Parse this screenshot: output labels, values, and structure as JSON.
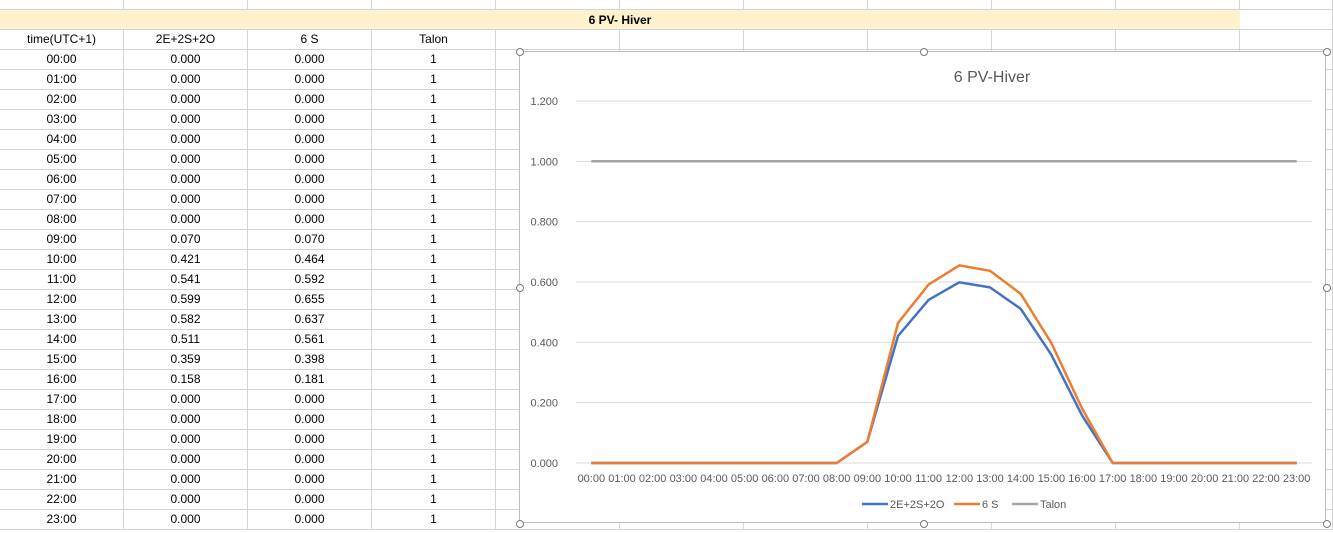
{
  "sheet": {
    "title": "6 PV- Hiver",
    "headers": [
      "time(UTC+1)",
      "2E+2S+2O",
      "6 S",
      "Talon"
    ],
    "rows": [
      [
        "00:00",
        "0.000",
        "0.000",
        "1"
      ],
      [
        "01:00",
        "0.000",
        "0.000",
        "1"
      ],
      [
        "02:00",
        "0.000",
        "0.000",
        "1"
      ],
      [
        "03:00",
        "0.000",
        "0.000",
        "1"
      ],
      [
        "04:00",
        "0.000",
        "0.000",
        "1"
      ],
      [
        "05:00",
        "0.000",
        "0.000",
        "1"
      ],
      [
        "06:00",
        "0.000",
        "0.000",
        "1"
      ],
      [
        "07:00",
        "0.000",
        "0.000",
        "1"
      ],
      [
        "08:00",
        "0.000",
        "0.000",
        "1"
      ],
      [
        "09:00",
        "0.070",
        "0.070",
        "1"
      ],
      [
        "10:00",
        "0.421",
        "0.464",
        "1"
      ],
      [
        "11:00",
        "0.541",
        "0.592",
        "1"
      ],
      [
        "12:00",
        "0.599",
        "0.655",
        "1"
      ],
      [
        "13:00",
        "0.582",
        "0.637",
        "1"
      ],
      [
        "14:00",
        "0.511",
        "0.561",
        "1"
      ],
      [
        "15:00",
        "0.359",
        "0.398",
        "1"
      ],
      [
        "16:00",
        "0.158",
        "0.181",
        "1"
      ],
      [
        "17:00",
        "0.000",
        "0.000",
        "1"
      ],
      [
        "18:00",
        "0.000",
        "0.000",
        "1"
      ],
      [
        "19:00",
        "0.000",
        "0.000",
        "1"
      ],
      [
        "20:00",
        "0.000",
        "0.000",
        "1"
      ],
      [
        "21:00",
        "0.000",
        "0.000",
        "1"
      ],
      [
        "22:00",
        "0.000",
        "0.000",
        "1"
      ],
      [
        "23:00",
        "0.000",
        "0.000",
        "1"
      ]
    ]
  },
  "chart_data": {
    "type": "line",
    "title": "6 PV-Hiver",
    "xlabel": "",
    "ylabel": "",
    "ylim": [
      0,
      1.2
    ],
    "yticks": [
      "0.000",
      "0.200",
      "0.400",
      "0.600",
      "0.800",
      "1.000",
      "1.200"
    ],
    "categories": [
      "00:00",
      "01:00",
      "02:00",
      "03:00",
      "04:00",
      "05:00",
      "06:00",
      "07:00",
      "08:00",
      "09:00",
      "10:00",
      "11:00",
      "12:00",
      "13:00",
      "14:00",
      "15:00",
      "16:00",
      "17:00",
      "18:00",
      "19:00",
      "20:00",
      "21:00",
      "22:00",
      "23:00"
    ],
    "series": [
      {
        "name": "2E+2S+2O",
        "color": "#4472c4",
        "values": [
          0,
          0,
          0,
          0,
          0,
          0,
          0,
          0,
          0,
          0.07,
          0.421,
          0.541,
          0.599,
          0.582,
          0.511,
          0.359,
          0.158,
          0,
          0,
          0,
          0,
          0,
          0,
          0
        ]
      },
      {
        "name": "6 S",
        "color": "#ed7d31",
        "values": [
          0,
          0,
          0,
          0,
          0,
          0,
          0,
          0,
          0,
          0.07,
          0.464,
          0.592,
          0.655,
          0.637,
          0.561,
          0.398,
          0.181,
          0,
          0,
          0,
          0,
          0,
          0,
          0
        ]
      },
      {
        "name": "Talon",
        "color": "#a5a5a5",
        "values": [
          1,
          1,
          1,
          1,
          1,
          1,
          1,
          1,
          1,
          1,
          1,
          1,
          1,
          1,
          1,
          1,
          1,
          1,
          1,
          1,
          1,
          1,
          1,
          1
        ]
      }
    ],
    "grid": true,
    "legend": "bottom"
  }
}
